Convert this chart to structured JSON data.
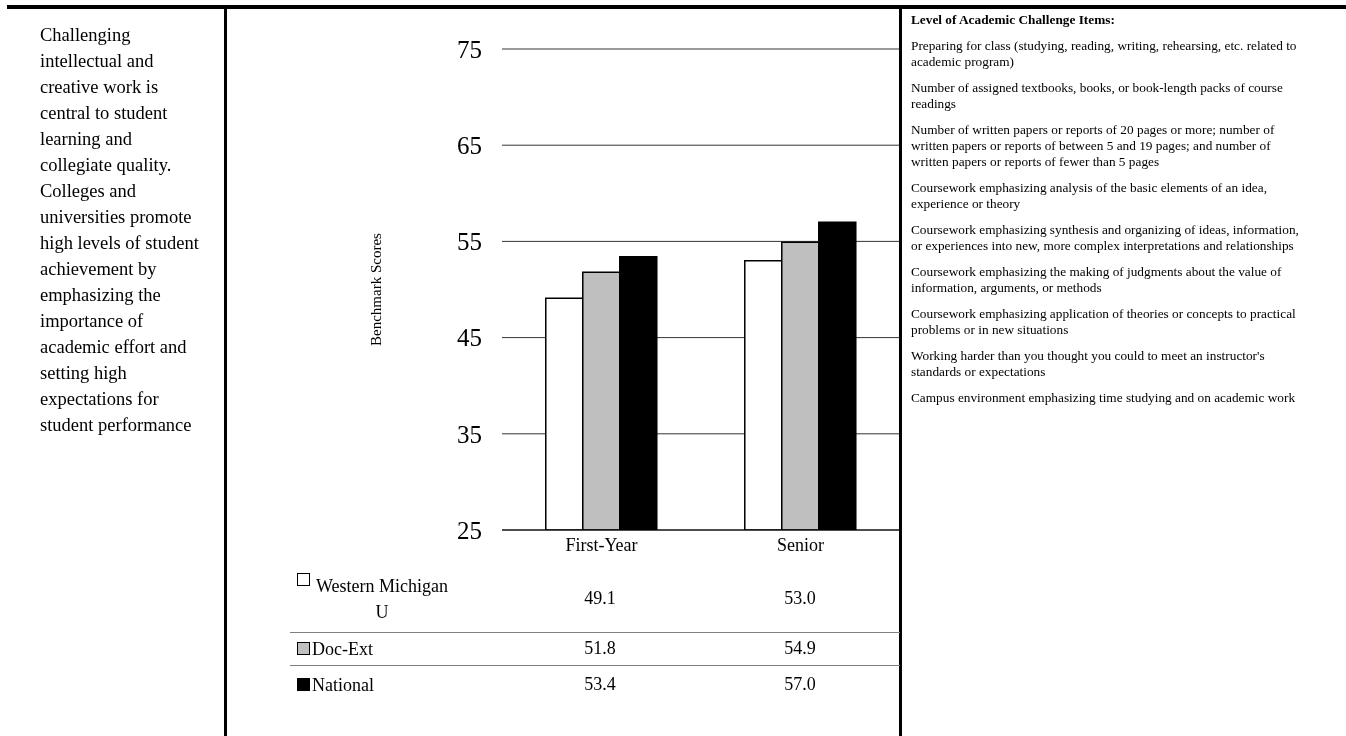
{
  "chart_data": {
    "type": "bar",
    "categories": [
      "First-Year",
      "Senior"
    ],
    "series": [
      {
        "name": "Western Michigan U",
        "color": "#ffffff",
        "values": [
          49.1,
          53.0
        ],
        "value_labels": [
          "49.1",
          "53.0"
        ]
      },
      {
        "name": "Doc-Ext",
        "color": "#bfbfbf",
        "values": [
          51.8,
          54.9
        ],
        "value_labels": [
          "51.8",
          "54.9"
        ]
      },
      {
        "name": "National",
        "color": "#000000",
        "values": [
          53.4,
          57.0
        ],
        "value_labels": [
          "53.4",
          "57.0"
        ]
      }
    ],
    "ylabel": "Benchmark Scores",
    "ylim": [
      25,
      75
    ],
    "yticks": [
      25,
      35,
      45,
      55,
      65,
      75
    ],
    "grid": "y",
    "legend": "bottom",
    "annotations": [
      "Challenging intellectual and creative work is central to student learning and collegiate quality. Colleges and universities promote high levels of student achievement by emphasizing the importance of academic effort and setting high expectations for student performance",
      "Level of Academic Challenge Items:",
      "Preparing for class (studying, reading, writing, rehearsing, etc. related to academic program)",
      "Number of assigned textbooks, books, or book-length packs of course readings",
      "Number of written papers or reports of 20 pages or more; number of written papers or reports of between 5 and 19 pages; and  number of written papers or reports of fewer than 5 pages",
      "Coursework emphasizing analysis of the basic elements of an idea, experience or theory",
      "Coursework emphasizing synthesis and organizing of ideas, information, or experiences into new, more complex interpretations and relationships",
      "Coursework emphasizing the making of judgments about the value of information, arguments, or methods",
      "Coursework emphasizing application of theories or concepts to practical problems or in new situations",
      "Working harder than you thought you could to meet an instructor's standards or expectations",
      "Campus environment emphasizing time studying and on academic work"
    ]
  }
}
